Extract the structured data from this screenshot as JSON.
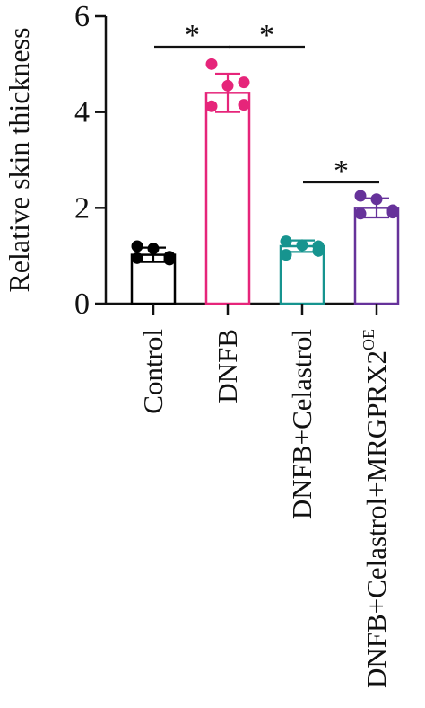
{
  "chart_data": {
    "type": "bar",
    "title": "",
    "xlabel": "",
    "ylabel": "Relative skin thickness",
    "ylim": [
      0,
      6
    ],
    "yticks": [
      0,
      2,
      4,
      6
    ],
    "grid": false,
    "legend": "none",
    "categories": [
      {
        "base": "Control",
        "sup": ""
      },
      {
        "base": "DNFB",
        "sup": ""
      },
      {
        "base": "DNFB+Celastrol",
        "sup": ""
      },
      {
        "base": "DNFB+Celastrol+MRGPRX2",
        "sup": "OE"
      }
    ],
    "series": [
      {
        "values": [
          1.02,
          4.4,
          1.2,
          2.0
        ],
        "errors": [
          0.15,
          0.4,
          0.12,
          0.2
        ],
        "colors": [
          "#000000",
          "#e6257a",
          "#16948f",
          "#66329a"
        ],
        "points": [
          [
            1.2,
            1.15,
            0.92,
            0.95,
            0.98
          ],
          [
            5.0,
            4.55,
            4.62,
            4.12,
            4.15
          ],
          [
            1.3,
            1.22,
            1.2,
            1.02,
            1.1
          ],
          [
            2.25,
            2.18,
            1.95,
            1.88,
            1.9
          ]
        ]
      }
    ],
    "significance": [
      {
        "from": 0,
        "to": 1,
        "label": "*"
      },
      {
        "from": 1,
        "to": 2,
        "label": "*"
      },
      {
        "from": 2,
        "to": 3,
        "label": "*"
      }
    ]
  }
}
